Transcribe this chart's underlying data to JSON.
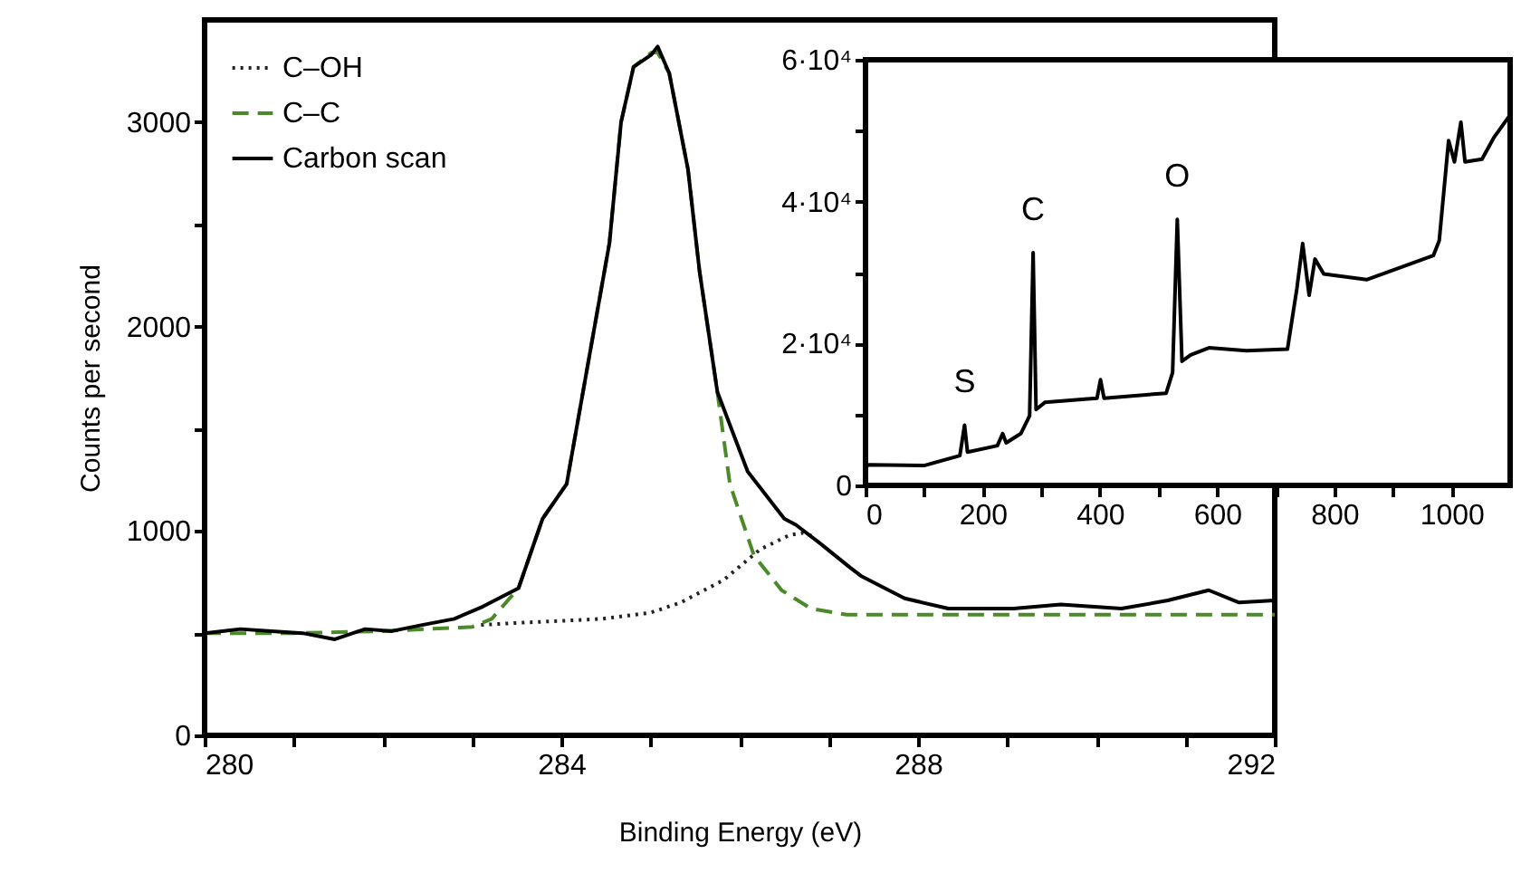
{
  "chart_data": [
    {
      "type": "line",
      "xlabel": "Binding Energy (eV)",
      "ylabel": "Counts per second",
      "xlim": [
        280,
        292
      ],
      "ylim": [
        0,
        3500
      ],
      "xticks": [
        280,
        {
          "value": 281,
          "label": null
        },
        {
          "value": 282,
          "label": null
        },
        {
          "value": 283,
          "label": null
        },
        284,
        {
          "value": 285,
          "label": null
        },
        {
          "value": 286,
          "label": null
        },
        {
          "value": 287,
          "label": null
        },
        288,
        {
          "value": 289,
          "label": null
        },
        {
          "value": 290,
          "label": null
        },
        {
          "value": 291,
          "label": null
        },
        292
      ],
      "yticks": [
        0,
        {
          "value": 500,
          "label": null
        },
        1000,
        {
          "value": 1500,
          "label": null
        },
        2000,
        {
          "value": 2500,
          "label": null
        },
        3000
      ],
      "legend": "top left",
      "series": [
        {
          "name": "C–OH",
          "color": "#222222",
          "line_style": "dotted",
          "x": [
            283.1,
            283.5,
            284.0,
            284.46,
            285.0,
            285.34,
            285.82,
            286.23,
            286.56,
            286.71,
            286.85
          ],
          "values": [
            540,
            550,
            560,
            570,
            600,
            650,
            760,
            910,
            980,
            990,
            970
          ]
        },
        {
          "name": "C–C",
          "color": "#4a8a2a",
          "line_style": "dashed",
          "x": [
            280,
            281,
            282,
            283,
            283.22,
            283.52,
            283.79,
            284.06,
            284.3,
            284.54,
            284.67,
            284.81,
            285.01,
            285.08,
            285.21,
            285.42,
            285.55,
            285.75,
            285.89,
            286.16,
            286.47,
            286.8,
            287.2,
            288,
            289,
            290,
            291,
            292
          ],
          "values": [
            500,
            500,
            510,
            530,
            570,
            720,
            1060,
            1230,
            1820,
            2410,
            3000,
            3270,
            3340,
            3340,
            3240,
            2770,
            2270,
            1680,
            1230,
            880,
            710,
            620,
            590,
            590,
            590,
            590,
            590,
            590
          ]
        },
        {
          "name": "Carbon scan",
          "color": "#000000",
          "line_style": "solid",
          "x": [
            280,
            280.4,
            280.75,
            281.1,
            281.46,
            281.8,
            282.1,
            282.44,
            282.8,
            283.12,
            283.52,
            283.79,
            284.06,
            284.3,
            284.54,
            284.67,
            284.81,
            285.01,
            285.08,
            285.21,
            285.42,
            285.55,
            285.75,
            286.09,
            286.5,
            286.63,
            286.9,
            287.24,
            287.36,
            287.85,
            288.34,
            289.07,
            289.6,
            290.28,
            290.8,
            291.26,
            291.6,
            292
          ],
          "values": [
            500,
            520,
            510,
            500,
            470,
            520,
            510,
            540,
            570,
            630,
            720,
            1060,
            1230,
            1820,
            2410,
            3000,
            3270,
            3330,
            3370,
            3240,
            2770,
            2270,
            1680,
            1290,
            1060,
            1030,
            940,
            820,
            780,
            670,
            620,
            620,
            640,
            620,
            660,
            710,
            650,
            660
          ]
        }
      ]
    },
    {
      "type": "line",
      "xlim": [
        0,
        1100
      ],
      "ylim": [
        0,
        60000
      ],
      "xticks": [
        0,
        {
          "value": 100,
          "label": null
        },
        200,
        {
          "value": 300,
          "label": null
        },
        400,
        {
          "value": 500,
          "label": null
        },
        600,
        {
          "value": 700,
          "label": null
        },
        800,
        {
          "value": 900,
          "label": null
        },
        1000
      ],
      "yticks": [
        0,
        {
          "value": 10000,
          "label": null
        },
        {
          "value": 20000,
          "label": "2·10⁴"
        },
        {
          "value": 30000,
          "label": null
        },
        {
          "value": 40000,
          "label": "4·10⁴"
        },
        {
          "value": 50000,
          "label": null
        },
        {
          "value": 60000,
          "label": "6·10⁴"
        }
      ],
      "annotations": [
        {
          "text": "S",
          "x": 169,
          "y": 8500
        },
        {
          "text": "C",
          "x": 286,
          "y": 32800
        },
        {
          "text": "O",
          "x": 532,
          "y": 37500
        }
      ],
      "series": [
        {
          "color": "#000000",
          "x": [
            0,
            6,
            100,
            161,
            169,
            174,
            225,
            234,
            240,
            265,
            280,
            286,
            291,
            306,
            379,
            395,
            401,
            407,
            513,
            524,
            532,
            540,
            555,
            586,
            650,
            720,
            736,
            746,
            757,
            767,
            782,
            855,
            969,
            979,
            995,
            1005,
            1016,
            1023,
            1052,
            1072,
            1098
          ],
          "values": [
            2700,
            2900,
            2800,
            4200,
            8500,
            4700,
            5600,
            7300,
            6000,
            7300,
            9800,
            32800,
            10700,
            11700,
            12200,
            12300,
            14900,
            12300,
            13000,
            15900,
            37500,
            17500,
            18400,
            19400,
            19000,
            19200,
            27700,
            34100,
            26800,
            31900,
            29800,
            29000,
            32400,
            34500,
            48600,
            45600,
            51200,
            45600,
            46000,
            49000,
            52000
          ]
        }
      ]
    }
  ]
}
